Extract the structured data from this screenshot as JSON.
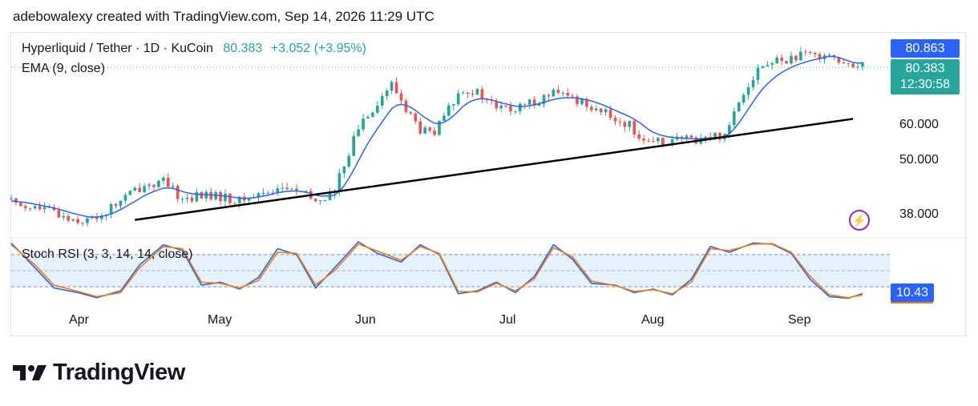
{
  "caption": "adebowalexy created with TradingView.com, Sep 14, 2026 11:29 UTC",
  "legend": {
    "symbol": "Hyperliquid / Tether · 1D · KuCoin",
    "last": "80.383",
    "change": "+3.052 (+3.95%)",
    "ema": "EMA (9, close)",
    "stoch": "Stoch RSI (3, 3, 14, 14, close)"
  },
  "price_axis": [
    "60.000",
    "50.000",
    "38.000"
  ],
  "tags": {
    "high": "80.863",
    "last": "80.383",
    "countdown": "12:30:58",
    "stoch": "10.43"
  },
  "months": [
    "Apr",
    "May",
    "Jun",
    "Jul",
    "Aug",
    "Sep"
  ],
  "brand": "TradingView",
  "colors": {
    "up": "#26a69a",
    "down": "#ef5350",
    "ema": "#2962ff",
    "k": "#2962ff",
    "d": "#f57c00",
    "trendline": "#000000",
    "band": "#e3f2fd"
  },
  "chart_data": [
    {
      "type": "candlestick",
      "title": "Hyperliquid / Tether · 1D · KuCoin",
      "scale": "log",
      "ylim": [
        34,
        92
      ],
      "x_range": [
        "2026-03-19",
        "2026-09-14"
      ],
      "x_ticks": [
        "Apr",
        "May",
        "Jun",
        "Jul",
        "Aug",
        "Sep"
      ],
      "y_ticks": [
        38,
        50,
        60
      ],
      "close_path": [
        [
          "2026-03-19",
          40.6
        ],
        [
          "2026-03-23",
          39.5
        ],
        [
          "2026-03-27",
          38.7
        ],
        [
          "2026-03-31",
          37.4
        ],
        [
          "2026-04-04",
          36.8
        ],
        [
          "2026-04-08",
          38.5
        ],
        [
          "2026-04-12",
          41.5
        ],
        [
          "2026-04-16",
          44.0
        ],
        [
          "2026-04-20",
          44.5
        ],
        [
          "2026-04-24",
          41.0
        ],
        [
          "2026-04-28",
          41.8
        ],
        [
          "2026-05-02",
          41.4
        ],
        [
          "2026-05-06",
          40.6
        ],
        [
          "2026-05-10",
          42.0
        ],
        [
          "2026-05-14",
          43.3
        ],
        [
          "2026-05-18",
          42.8
        ],
        [
          "2026-05-22",
          40.5
        ],
        [
          "2026-05-26",
          42.4
        ],
        [
          "2026-05-29",
          52.0
        ],
        [
          "2026-06-01",
          61.0
        ],
        [
          "2026-06-04",
          66.0
        ],
        [
          "2026-06-07",
          72.0
        ],
        [
          "2026-06-10",
          64.0
        ],
        [
          "2026-06-13",
          57.5
        ],
        [
          "2026-06-16",
          56.5
        ],
        [
          "2026-06-19",
          64.0
        ],
        [
          "2026-06-22",
          71.0
        ],
        [
          "2026-06-25",
          69.0
        ],
        [
          "2026-06-29",
          64.5
        ],
        [
          "2026-07-03",
          63.5
        ],
        [
          "2026-07-07",
          66.5
        ],
        [
          "2026-07-11",
          69.0
        ],
        [
          "2026-07-15",
          67.5
        ],
        [
          "2026-07-19",
          65.0
        ],
        [
          "2026-07-23",
          61.5
        ],
        [
          "2026-07-27",
          59.0
        ],
        [
          "2026-07-31",
          53.5
        ],
        [
          "2026-08-03",
          54.5
        ],
        [
          "2026-08-06",
          55.0
        ],
        [
          "2026-08-09",
          55.0
        ],
        [
          "2026-08-12",
          55.5
        ],
        [
          "2026-08-16",
          56.5
        ],
        [
          "2026-08-20",
          70.0
        ],
        [
          "2026-08-23",
          78.0
        ],
        [
          "2026-08-27",
          81.0
        ],
        [
          "2026-08-31",
          82.5
        ],
        [
          "2026-09-04",
          83.5
        ],
        [
          "2026-09-07",
          84.5
        ],
        [
          "2026-09-10",
          79.0
        ],
        [
          "2026-09-12",
          78.0
        ],
        [
          "2026-09-14",
          80.383
        ]
      ],
      "trendline": [
        [
          "2026-04-14",
          37.0
        ],
        [
          "2026-09-12",
          60.9
        ]
      ],
      "indicators": [
        "EMA (9, close)"
      ]
    },
    {
      "type": "line",
      "title": "Stoch RSI (3, 3, 14, 14, close)",
      "ylim": [
        0,
        100
      ],
      "bands": [
        20,
        80
      ],
      "x": [
        "2026-03-19",
        "2026-03-24",
        "2026-03-28",
        "2026-04-02",
        "2026-04-06",
        "2026-04-11",
        "2026-04-15",
        "2026-04-20",
        "2026-04-24",
        "2026-04-28",
        "2026-05-02",
        "2026-05-06",
        "2026-05-10",
        "2026-05-14",
        "2026-05-18",
        "2026-05-22",
        "2026-05-26",
        "2026-05-31",
        "2026-06-04",
        "2026-06-09",
        "2026-06-13",
        "2026-06-17",
        "2026-06-21",
        "2026-06-25",
        "2026-06-29",
        "2026-07-03",
        "2026-07-07",
        "2026-07-11",
        "2026-07-15",
        "2026-07-19",
        "2026-07-24",
        "2026-07-28",
        "2026-08-01",
        "2026-08-05",
        "2026-08-09",
        "2026-08-13",
        "2026-08-17",
        "2026-08-22",
        "2026-08-26",
        "2026-08-30",
        "2026-09-03",
        "2026-09-07",
        "2026-09-11",
        "2026-09-14"
      ],
      "series": [
        {
          "values": [
            98,
            55,
            20,
            12,
            3,
            15,
            60,
            95,
            85,
            25,
            30,
            18,
            38,
            88,
            78,
            20,
            55,
            100,
            80,
            65,
            95,
            78,
            10,
            15,
            30,
            12,
            40,
            95,
            70,
            28,
            25,
            12,
            18,
            8,
            35,
            92,
            82,
            98,
            96,
            80,
            35,
            5,
            2,
            10.43
          ]
        },
        {
          "values": [
            95,
            60,
            25,
            14,
            5,
            12,
            55,
            92,
            88,
            30,
            28,
            20,
            33,
            82,
            80,
            25,
            50,
            96,
            84,
            68,
            92,
            80,
            14,
            13,
            28,
            15,
            36,
            90,
            74,
            32,
            24,
            14,
            17,
            10,
            30,
            88,
            85,
            96,
            97,
            82,
            40,
            8,
            3,
            8
          ]
        }
      ]
    }
  ]
}
